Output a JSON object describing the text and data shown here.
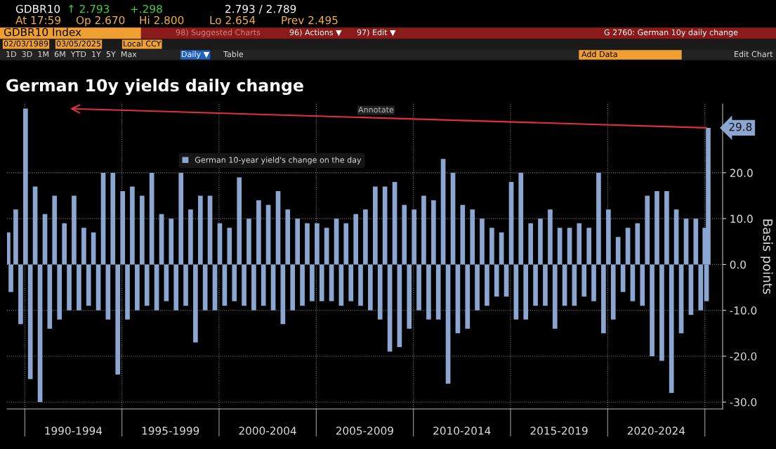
{
  "chart_data": {
    "type": "bar",
    "title": "German 10y yields daily change",
    "ylabel": "Basis points",
    "x": [
      "1989-02-20",
      "1989-04-15",
      "1989-07-15",
      "1989-10-15",
      "1990-01-15",
      "1990-04-15",
      "1990-07-15",
      "1990-10-15",
      "1991-01-15",
      "1991-04-15",
      "1991-07-15",
      "1991-10-15",
      "1992-01-15",
      "1992-04-15",
      "1992-07-15",
      "1992-10-15",
      "1993-01-15",
      "1993-04-15",
      "1993-07-15",
      "1993-10-15",
      "1994-01-15",
      "1994-04-15",
      "1994-07-15",
      "1994-10-15",
      "1995-01-15",
      "1995-04-15",
      "1995-07-15",
      "1995-10-15",
      "1996-01-15",
      "1996-04-15",
      "1996-07-15",
      "1996-10-15",
      "1997-01-15",
      "1997-04-15",
      "1997-07-15",
      "1997-10-15",
      "1998-01-15",
      "1998-04-15",
      "1998-07-15",
      "1998-10-15",
      "1999-01-15",
      "1999-04-15",
      "1999-07-15",
      "1999-10-15",
      "2000-01-15",
      "2000-04-15",
      "2000-07-15",
      "2000-10-15",
      "2001-01-15",
      "2001-04-15",
      "2001-07-15",
      "2001-10-15",
      "2002-01-15",
      "2002-04-15",
      "2002-07-15",
      "2002-10-15",
      "2003-01-15",
      "2003-04-15",
      "2003-07-15",
      "2003-10-15",
      "2004-01-15",
      "2004-04-15",
      "2004-07-15",
      "2004-10-15",
      "2005-01-15",
      "2005-04-15",
      "2005-07-15",
      "2005-10-15",
      "2006-01-15",
      "2006-04-15",
      "2006-07-15",
      "2006-10-15",
      "2007-01-15",
      "2007-04-15",
      "2007-07-15",
      "2007-10-15",
      "2008-01-15",
      "2008-04-15",
      "2008-07-15",
      "2008-10-15",
      "2009-01-15",
      "2009-04-15",
      "2009-07-15",
      "2009-10-15",
      "2010-01-15",
      "2010-04-15",
      "2010-07-15",
      "2010-10-15",
      "2011-01-15",
      "2011-04-15",
      "2011-07-15",
      "2011-10-15",
      "2012-01-15",
      "2012-04-15",
      "2012-07-15",
      "2012-10-15",
      "2013-01-15",
      "2013-04-15",
      "2013-07-15",
      "2013-10-15",
      "2014-01-15",
      "2014-04-15",
      "2014-07-15",
      "2014-10-15",
      "2015-01-15",
      "2015-04-15",
      "2015-07-15",
      "2015-10-15",
      "2016-01-15",
      "2016-04-15",
      "2016-07-15",
      "2016-10-15",
      "2017-01-15",
      "2017-04-15",
      "2017-07-15",
      "2017-10-15",
      "2018-01-15",
      "2018-04-15",
      "2018-07-15",
      "2018-10-15",
      "2019-01-15",
      "2019-04-15",
      "2019-07-15",
      "2019-10-15",
      "2020-01-15",
      "2020-04-15",
      "2020-07-15",
      "2020-10-15",
      "2021-01-15",
      "2021-04-15",
      "2021-07-15",
      "2021-10-15",
      "2022-01-15",
      "2022-04-15",
      "2022-07-15",
      "2022-10-15",
      "2023-01-15",
      "2023-04-15",
      "2023-07-15",
      "2023-10-15",
      "2024-01-15",
      "2024-04-15",
      "2024-07-15",
      "2024-10-15",
      "2025-01-01",
      "2025-02-01",
      "2025-03-05"
    ],
    "series": [
      {
        "name": "German 10-year yield's change on the day",
        "color": "#8ba6d1",
        "values": [
          7,
          -6,
          12,
          -13,
          34,
          -25,
          17,
          -30,
          11,
          -14,
          15,
          -12,
          9,
          -10,
          15,
          -10,
          8,
          -9,
          7,
          -10,
          20,
          -12,
          20,
          -24,
          16,
          -12,
          17,
          -10,
          15,
          -9,
          20,
          -10,
          11,
          -8,
          10,
          -10,
          20,
          -9,
          12,
          -17,
          15,
          -10,
          15,
          -10,
          9,
          -9,
          8,
          -8,
          19,
          -9,
          10,
          -10,
          14,
          -9,
          13,
          -10,
          16,
          -13,
          12,
          -10,
          10,
          -9,
          9,
          -8,
          9,
          -8,
          8,
          -8,
          10,
          -9,
          9,
          -8,
          11,
          -9,
          12,
          -10,
          17,
          -12,
          17,
          -19,
          18,
          -18,
          13,
          -14,
          12,
          -10,
          15,
          -12,
          14,
          -12,
          23,
          -26,
          20,
          -15,
          13,
          -14,
          12,
          -10,
          10,
          -9,
          8,
          -7,
          7,
          -7,
          18,
          -12,
          20,
          -12,
          9,
          -9,
          10,
          -9,
          12,
          -14,
          8,
          -9,
          8,
          -9,
          9,
          -7,
          8,
          -8,
          20,
          -15,
          12,
          -12,
          6,
          -6,
          8,
          -8,
          9,
          -9,
          15,
          -20,
          16,
          -21,
          16,
          -28,
          12,
          -15,
          10,
          -11,
          10,
          -10,
          8,
          -8,
          29.8
        ]
      }
    ],
    "xlim": [
      "1989-02-01",
      "2025-12-01"
    ],
    "xticks": [
      {
        "value": "1990-01-01",
        "label": null
      },
      {
        "value": "1992-07-01",
        "label": "1990-1994"
      },
      {
        "value": "1995-01-01",
        "label": null
      },
      {
        "value": "1997-07-01",
        "label": "1995-1999"
      },
      {
        "value": "2000-01-01",
        "label": null
      },
      {
        "value": "2002-07-01",
        "label": "2000-2004"
      },
      {
        "value": "2005-01-01",
        "label": null
      },
      {
        "value": "2007-07-01",
        "label": "2005-2009"
      },
      {
        "value": "2010-01-01",
        "label": null
      },
      {
        "value": "2012-07-01",
        "label": "2010-2014"
      },
      {
        "value": "2015-01-01",
        "label": null
      },
      {
        "value": "2017-07-01",
        "label": "2015-2019"
      },
      {
        "value": "2020-01-01",
        "label": null
      },
      {
        "value": "2022-07-01",
        "label": "2020-2024"
      },
      {
        "value": "2025-01-01",
        "label": null
      }
    ],
    "ylim": [
      -31.5,
      35
    ],
    "yticks": [
      {
        "value": -30,
        "label": "-30.0"
      },
      {
        "value": -20,
        "label": "-20.0"
      },
      {
        "value": -10,
        "label": "-10.0"
      },
      {
        "value": 0,
        "label": "0.0"
      },
      {
        "value": 10,
        "label": "10.0"
      },
      {
        "value": 20,
        "label": "20.0"
      }
    ],
    "grid": true,
    "legend": "top",
    "annotations": [
      "GDBR10",
      "↑ 2.793",
      "+.298",
      "2.793 / 2.789",
      "At 17:59",
      "Op 2.670",
      "Hi 2.800",
      "Lo 2.654",
      "Prev 2.495",
      "GDBR10 Index",
      "98) Suggested Charts",
      "96) Actions ▼",
      "97) Edit ▼",
      "G 2760: German 10y daily change",
      "02/03/1989",
      "03/05/2025",
      "Local CCY",
      "1D  3D  1M  6M  YTD  1Y  5Y  Max",
      "Daily ▼",
      "Table",
      "Add Data",
      "Edit Chart",
      "Annotate",
      {
        "text": "29.8",
        "x": "2025-03-05",
        "y": 29.8
      }
    ]
  }
}
